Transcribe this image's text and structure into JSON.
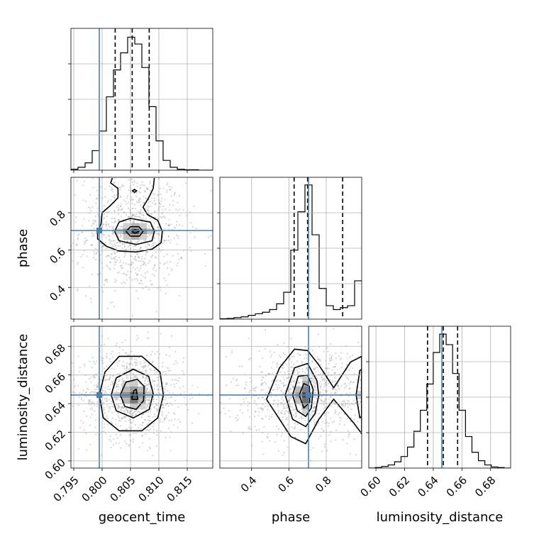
{
  "chart_data": {
    "type": "corner",
    "grid": true,
    "truth_color": "#4682b4",
    "parameters": [
      "geocent_time",
      "phase",
      "luminosity_distance"
    ],
    "truths": {
      "geocent_time": 0.7995,
      "phase": 0.705,
      "luminosity_distance": 0.646
    },
    "quantiles": {
      "geocent_time": [
        0.8023,
        0.8053,
        0.8083
      ],
      "phase": [
        0.628,
        0.7,
        0.888
      ],
      "luminosity_distance": [
        0.636,
        0.647,
        0.657
      ]
    },
    "axes": {
      "geocent_time": {
        "label": "geocent_time",
        "lim": [
          0.7945,
          0.8195
        ],
        "ticks": [
          0.795,
          0.8,
          0.805,
          0.81,
          0.815
        ],
        "tick_labels": [
          "0.795",
          "0.800",
          "0.805",
          "0.810",
          "0.815"
        ]
      },
      "phase": {
        "label": "phase",
        "lim": [
          0.23,
          0.99
        ],
        "ticks": [
          0.4,
          0.6,
          0.8
        ],
        "tick_labels": [
          "0.4",
          "0.6",
          "0.8"
        ]
      },
      "luminosity_distance": {
        "label": "luminosity_distance",
        "lim": [
          0.595,
          0.694
        ],
        "ticks": [
          0.6,
          0.62,
          0.64,
          0.66,
          0.68
        ],
        "tick_labels": [
          "0.60",
          "0.62",
          "0.64",
          "0.66",
          "0.68"
        ]
      }
    },
    "histograms": {
      "geocent_time": {
        "edges": [
          0.7945,
          0.79575,
          0.797,
          0.79825,
          0.7995,
          0.80075,
          0.802,
          0.80325,
          0.8045,
          0.80575,
          0.807,
          0.80825,
          0.8095,
          0.81075,
          0.812,
          0.81325,
          0.8145,
          0.81575,
          0.817,
          0.81825,
          0.8195
        ],
        "counts": [
          2,
          6,
          15,
          40,
          80,
          150,
          205,
          240,
          272,
          258,
          210,
          130,
          60,
          20,
          6,
          2,
          1,
          1,
          0,
          0
        ],
        "ymax": 290
      },
      "phase": {
        "edges": [
          0.23,
          0.268,
          0.306,
          0.344,
          0.382,
          0.42,
          0.458,
          0.496,
          0.534,
          0.572,
          0.61,
          0.648,
          0.686,
          0.724,
          0.762,
          0.8,
          0.838,
          0.876,
          0.914,
          0.952,
          0.99
        ],
        "counts": [
          1,
          2,
          4,
          6,
          10,
          14,
          18,
          25,
          40,
          70,
          180,
          280,
          350,
          220,
          80,
          35,
          25,
          30,
          35,
          100
        ],
        "ymax": 370
      },
      "luminosity_distance": {
        "edges": [
          0.595,
          0.5995,
          0.604,
          0.6085,
          0.613,
          0.6175,
          0.622,
          0.6265,
          0.631,
          0.6355,
          0.64,
          0.6445,
          0.649,
          0.6535,
          0.658,
          0.6625,
          0.667,
          0.6715,
          0.676,
          0.6805,
          0.685,
          0.6895,
          0.694
        ],
        "counts": [
          0,
          1,
          3,
          6,
          12,
          22,
          40,
          70,
          110,
          160,
          220,
          255,
          235,
          180,
          110,
          60,
          30,
          14,
          6,
          2,
          1,
          0
        ],
        "ymax": 270
      }
    },
    "panels_2d": [
      {
        "x": "geocent_time",
        "y": "phase",
        "contours": [
          [
            [
              0.8018,
              0.986
            ],
            [
              0.8015,
              0.96
            ],
            [
              0.8028,
              0.93
            ],
            [
              0.8028,
              0.88
            ],
            [
              0.8015,
              0.84
            ],
            [
              0.8,
              0.8
            ],
            [
              0.7998,
              0.74
            ],
            [
              0.7992,
              0.7
            ],
            [
              0.7992,
              0.66
            ],
            [
              0.8008,
              0.62
            ],
            [
              0.803,
              0.595
            ],
            [
              0.806,
              0.59
            ],
            [
              0.8088,
              0.605
            ],
            [
              0.8104,
              0.64
            ],
            [
              0.8106,
              0.7
            ],
            [
              0.8098,
              0.76
            ],
            [
              0.808,
              0.79
            ],
            [
              0.8072,
              0.83
            ],
            [
              0.8082,
              0.88
            ],
            [
              0.809,
              0.93
            ],
            [
              0.8092,
              0.986
            ]
          ],
          [
            [
              0.8022,
              0.7
            ],
            [
              0.803,
              0.65
            ],
            [
              0.806,
              0.63
            ],
            [
              0.8088,
              0.65
            ],
            [
              0.8092,
              0.7
            ],
            [
              0.8085,
              0.75
            ],
            [
              0.805,
              0.77
            ],
            [
              0.803,
              0.75
            ],
            [
              0.8022,
              0.7
            ]
          ],
          [
            [
              0.8042,
              0.7
            ],
            [
              0.805,
              0.675
            ],
            [
              0.8066,
              0.675
            ],
            [
              0.8072,
              0.7
            ],
            [
              0.8065,
              0.725
            ],
            [
              0.805,
              0.725
            ],
            [
              0.8042,
              0.7
            ]
          ],
          [
            [
              0.8053,
              0.7
            ],
            [
              0.8058,
              0.69
            ],
            [
              0.8065,
              0.7
            ],
            [
              0.8058,
              0.71
            ],
            [
              0.8053,
              0.7
            ]
          ]
        ],
        "blobs": [
          [
            [
              0.8053,
              0.917
            ],
            [
              0.8057,
              0.91
            ],
            [
              0.8061,
              0.917
            ],
            [
              0.8057,
              0.925
            ],
            [
              0.8053,
              0.917
            ]
          ]
        ]
      },
      {
        "x": "geocent_time",
        "y": "luminosity_distance",
        "contours": [
          [
            [
              0.7995,
              0.646
            ],
            [
              0.8002,
              0.63
            ],
            [
              0.803,
              0.621
            ],
            [
              0.807,
              0.621
            ],
            [
              0.8098,
              0.63
            ],
            [
              0.8108,
              0.646
            ],
            [
              0.8102,
              0.662
            ],
            [
              0.807,
              0.673
            ],
            [
              0.803,
              0.673
            ],
            [
              0.8005,
              0.662
            ],
            [
              0.7995,
              0.646
            ]
          ],
          [
            [
              0.8016,
              0.646
            ],
            [
              0.8025,
              0.635
            ],
            [
              0.8055,
              0.63
            ],
            [
              0.8083,
              0.636
            ],
            [
              0.809,
              0.647
            ],
            [
              0.8082,
              0.659
            ],
            [
              0.8055,
              0.664
            ],
            [
              0.8025,
              0.658
            ],
            [
              0.8016,
              0.646
            ]
          ],
          [
            [
              0.8032,
              0.646
            ],
            [
              0.804,
              0.638
            ],
            [
              0.806,
              0.636
            ],
            [
              0.8073,
              0.642
            ],
            [
              0.8074,
              0.652
            ],
            [
              0.8062,
              0.657
            ],
            [
              0.8042,
              0.655
            ],
            [
              0.8032,
              0.646
            ]
          ],
          [
            [
              0.8052,
              0.643
            ],
            [
              0.8063,
              0.643
            ],
            [
              0.806,
              0.65
            ],
            [
              0.8056,
              0.649
            ],
            [
              0.8052,
              0.643
            ]
          ]
        ],
        "blobs": []
      },
      {
        "x": "phase",
        "y": "luminosity_distance",
        "contours": [
          [
            [
              0.48,
              0.643
            ],
            [
              0.55,
              0.665
            ],
            [
              0.63,
              0.678
            ],
            [
              0.7,
              0.677
            ],
            [
              0.76,
              0.667
            ],
            [
              0.84,
              0.651
            ],
            [
              0.93,
              0.669
            ],
            [
              0.99,
              0.673
            ],
            [
              0.99,
              0.619
            ],
            [
              0.95,
              0.626
            ],
            [
              0.84,
              0.643
            ],
            [
              0.76,
              0.629
            ],
            [
              0.69,
              0.612
            ],
            [
              0.61,
              0.617
            ],
            [
              0.53,
              0.633
            ],
            [
              0.48,
              0.643
            ]
          ],
          [
            [
              0.58,
              0.646
            ],
            [
              0.63,
              0.665
            ],
            [
              0.7,
              0.668
            ],
            [
              0.75,
              0.656
            ],
            [
              0.76,
              0.646
            ],
            [
              0.74,
              0.633
            ],
            [
              0.69,
              0.624
            ],
            [
              0.62,
              0.629
            ],
            [
              0.58,
              0.646
            ]
          ],
          [
            [
              0.62,
              0.646
            ],
            [
              0.65,
              0.659
            ],
            [
              0.7,
              0.66
            ],
            [
              0.73,
              0.65
            ],
            [
              0.72,
              0.637
            ],
            [
              0.69,
              0.631
            ],
            [
              0.645,
              0.635
            ],
            [
              0.62,
              0.646
            ]
          ],
          [
            [
              0.655,
              0.646
            ],
            [
              0.68,
              0.654
            ],
            [
              0.71,
              0.652
            ],
            [
              0.712,
              0.641
            ],
            [
              0.68,
              0.637
            ],
            [
              0.655,
              0.646
            ]
          ],
          [
            [
              0.96,
              0.646
            ],
            [
              0.98,
              0.663
            ],
            [
              0.99,
              0.664
            ],
            [
              0.99,
              0.631
            ],
            [
              0.98,
              0.63
            ],
            [
              0.96,
              0.646
            ]
          ]
        ],
        "blobs": []
      }
    ],
    "density_cells": [
      {
        "panel": "geocent_time|phase",
        "x": 0.8058,
        "y": 0.7,
        "w": 0.0014,
        "h": 0.03,
        "level": 0.9
      },
      {
        "panel": "geocent_time|phase",
        "x": 0.8044,
        "y": 0.7,
        "w": 0.0014,
        "h": 0.03,
        "level": 0.6
      },
      {
        "panel": "geocent_time|phase",
        "x": 0.8072,
        "y": 0.7,
        "w": 0.0014,
        "h": 0.03,
        "level": 0.55
      },
      {
        "panel": "geocent_time|phase",
        "x": 0.8058,
        "y": 0.67,
        "w": 0.0014,
        "h": 0.03,
        "level": 0.45
      },
      {
        "panel": "geocent_time|phase",
        "x": 0.8058,
        "y": 0.73,
        "w": 0.0014,
        "h": 0.03,
        "level": 0.4
      },
      {
        "panel": "geocent_time|phase",
        "x": 0.803,
        "y": 0.7,
        "w": 0.0014,
        "h": 0.03,
        "level": 0.3
      },
      {
        "panel": "geocent_time|phase",
        "x": 0.8086,
        "y": 0.7,
        "w": 0.0014,
        "h": 0.03,
        "level": 0.3
      },
      {
        "panel": "geocent_time|phase",
        "x": 0.8044,
        "y": 0.67,
        "w": 0.0014,
        "h": 0.03,
        "level": 0.3
      },
      {
        "panel": "geocent_time|phase",
        "x": 0.8072,
        "y": 0.73,
        "w": 0.0014,
        "h": 0.03,
        "level": 0.28
      },
      {
        "panel": "geocent_time|phase",
        "x": 0.8044,
        "y": 0.73,
        "w": 0.0014,
        "h": 0.03,
        "level": 0.25
      },
      {
        "panel": "geocent_time|phase",
        "x": 0.8072,
        "y": 0.67,
        "w": 0.0014,
        "h": 0.03,
        "level": 0.25
      },
      {
        "panel": "geocent_time|luminosity_distance",
        "x": 0.8056,
        "y": 0.646,
        "w": 0.0014,
        "h": 0.004,
        "level": 0.95
      },
      {
        "panel": "geocent_time|luminosity_distance",
        "x": 0.8056,
        "y": 0.642,
        "w": 0.0014,
        "h": 0.004,
        "level": 0.75
      },
      {
        "panel": "geocent_time|luminosity_distance",
        "x": 0.8042,
        "y": 0.646,
        "w": 0.0014,
        "h": 0.004,
        "level": 0.6
      },
      {
        "panel": "geocent_time|luminosity_distance",
        "x": 0.807,
        "y": 0.646,
        "w": 0.0014,
        "h": 0.004,
        "level": 0.55
      },
      {
        "panel": "geocent_time|luminosity_distance",
        "x": 0.8056,
        "y": 0.65,
        "w": 0.0014,
        "h": 0.004,
        "level": 0.55
      },
      {
        "panel": "geocent_time|luminosity_distance",
        "x": 0.8042,
        "y": 0.642,
        "w": 0.0014,
        "h": 0.004,
        "level": 0.4
      },
      {
        "panel": "geocent_time|luminosity_distance",
        "x": 0.807,
        "y": 0.642,
        "w": 0.0014,
        "h": 0.004,
        "level": 0.4
      },
      {
        "panel": "geocent_time|luminosity_distance",
        "x": 0.8042,
        "y": 0.65,
        "w": 0.0014,
        "h": 0.004,
        "level": 0.38
      },
      {
        "panel": "geocent_time|luminosity_distance",
        "x": 0.807,
        "y": 0.65,
        "w": 0.0014,
        "h": 0.004,
        "level": 0.38
      },
      {
        "panel": "geocent_time|luminosity_distance",
        "x": 0.8028,
        "y": 0.646,
        "w": 0.0014,
        "h": 0.004,
        "level": 0.3
      },
      {
        "panel": "geocent_time|luminosity_distance",
        "x": 0.8084,
        "y": 0.646,
        "w": 0.0014,
        "h": 0.004,
        "level": 0.28
      },
      {
        "panel": "geocent_time|luminosity_distance",
        "x": 0.8056,
        "y": 0.638,
        "w": 0.0014,
        "h": 0.004,
        "level": 0.3
      },
      {
        "panel": "geocent_time|luminosity_distance",
        "x": 0.8056,
        "y": 0.654,
        "w": 0.0014,
        "h": 0.004,
        "level": 0.28
      },
      {
        "panel": "geocent_time|luminosity_distance",
        "x": 0.8042,
        "y": 0.654,
        "w": 0.0014,
        "h": 0.004,
        "level": 0.22
      },
      {
        "panel": "geocent_time|luminosity_distance",
        "x": 0.807,
        "y": 0.638,
        "w": 0.0014,
        "h": 0.004,
        "level": 0.22
      },
      {
        "panel": "phase|luminosity_distance",
        "x": 0.69,
        "y": 0.646,
        "w": 0.038,
        "h": 0.004,
        "level": 1.0
      },
      {
        "panel": "phase|luminosity_distance",
        "x": 0.69,
        "y": 0.642,
        "w": 0.038,
        "h": 0.004,
        "level": 0.8
      },
      {
        "panel": "phase|luminosity_distance",
        "x": 0.69,
        "y": 0.65,
        "w": 0.038,
        "h": 0.004,
        "level": 0.7
      },
      {
        "panel": "phase|luminosity_distance",
        "x": 0.69,
        "y": 0.654,
        "w": 0.038,
        "h": 0.004,
        "level": 0.45
      },
      {
        "panel": "phase|luminosity_distance",
        "x": 0.69,
        "y": 0.638,
        "w": 0.038,
        "h": 0.004,
        "level": 0.45
      },
      {
        "panel": "phase|luminosity_distance",
        "x": 0.652,
        "y": 0.646,
        "w": 0.038,
        "h": 0.004,
        "level": 0.5
      },
      {
        "panel": "phase|luminosity_distance",
        "x": 0.652,
        "y": 0.642,
        "w": 0.038,
        "h": 0.004,
        "level": 0.35
      },
      {
        "panel": "phase|luminosity_distance",
        "x": 0.652,
        "y": 0.65,
        "w": 0.038,
        "h": 0.004,
        "level": 0.35
      },
      {
        "panel": "phase|luminosity_distance",
        "x": 0.69,
        "y": 0.658,
        "w": 0.038,
        "h": 0.004,
        "level": 0.25
      },
      {
        "panel": "phase|luminosity_distance",
        "x": 0.69,
        "y": 0.634,
        "w": 0.038,
        "h": 0.004,
        "level": 0.25
      },
      {
        "panel": "phase|luminosity_distance",
        "x": 0.614,
        "y": 0.646,
        "w": 0.038,
        "h": 0.004,
        "level": 0.2
      },
      {
        "panel": "phase|luminosity_distance",
        "x": 0.728,
        "y": 0.646,
        "w": 0.038,
        "h": 0.004,
        "level": 0.2
      },
      {
        "panel": "phase|luminosity_distance",
        "x": 0.975,
        "y": 0.646,
        "w": 0.03,
        "h": 0.006,
        "level": 0.25
      }
    ]
  }
}
